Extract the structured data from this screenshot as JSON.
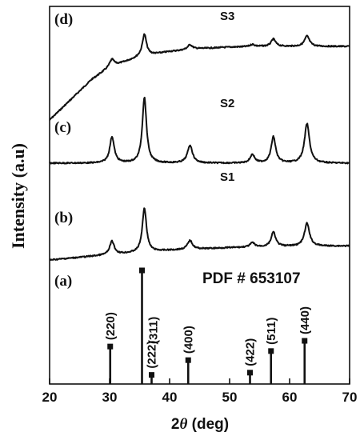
{
  "chart_data": {
    "type": "line",
    "title": "",
    "xlabel": "2θ (deg)",
    "xlabel_parts": {
      "prefix": "2",
      "theta": "θ",
      "suffix": " (deg)"
    },
    "ylabel": "Intensity (a.u)",
    "xlim": [
      20,
      70
    ],
    "xticks": [
      20,
      30,
      40,
      50,
      60,
      70
    ],
    "y_ticks_labeled": false,
    "grid": false,
    "series": [
      {
        "name": "S3",
        "panel": "(d)",
        "baseline": [
          [
            20,
            0.0
          ],
          [
            27,
            0.55
          ],
          [
            30,
            0.72
          ],
          [
            35,
            0.86
          ],
          [
            40,
            0.93
          ],
          [
            45,
            0.97
          ],
          [
            50,
            0.99
          ],
          [
            55,
            1.0
          ],
          [
            60,
            1.0
          ],
          [
            65,
            1.0
          ],
          [
            70,
            1.0
          ]
        ],
        "peaks": [
          {
            "x": 30.4,
            "height": 0.32,
            "width": 0.45
          },
          {
            "x": 35.8,
            "height": 1.0,
            "width": 0.42
          },
          {
            "x": 43.4,
            "height": 0.22,
            "width": 0.5
          },
          {
            "x": 53.8,
            "height": 0.1,
            "width": 0.45
          },
          {
            "x": 57.3,
            "height": 0.34,
            "width": 0.45
          },
          {
            "x": 62.9,
            "height": 0.48,
            "width": 0.5
          }
        ]
      },
      {
        "name": "S2",
        "panel": "(c)",
        "baseline": [
          [
            20,
            0.0
          ],
          [
            70,
            0.02
          ]
        ],
        "peaks": [
          {
            "x": 30.4,
            "height": 0.4,
            "width": 0.45
          },
          {
            "x": 35.8,
            "height": 1.0,
            "width": 0.42
          },
          {
            "x": 43.4,
            "height": 0.27,
            "width": 0.5
          },
          {
            "x": 53.8,
            "height": 0.13,
            "width": 0.45
          },
          {
            "x": 57.3,
            "height": 0.4,
            "width": 0.45
          },
          {
            "x": 62.9,
            "height": 0.6,
            "width": 0.5
          }
        ]
      },
      {
        "name": "S1",
        "panel": "(b)",
        "baseline": [
          [
            20,
            0.0
          ],
          [
            25,
            0.06
          ],
          [
            30,
            0.12
          ],
          [
            40,
            0.22
          ],
          [
            50,
            0.28
          ],
          [
            60,
            0.31
          ],
          [
            70,
            0.32
          ]
        ],
        "peaks": [
          {
            "x": 30.4,
            "height": 0.3,
            "width": 0.45
          },
          {
            "x": 35.8,
            "height": 1.0,
            "width": 0.42
          },
          {
            "x": 43.4,
            "height": 0.2,
            "width": 0.5
          },
          {
            "x": 53.8,
            "height": 0.1,
            "width": 0.45
          },
          {
            "x": 57.3,
            "height": 0.33,
            "width": 0.45
          },
          {
            "x": 62.9,
            "height": 0.52,
            "width": 0.5
          }
        ]
      }
    ],
    "reference": {
      "panel": "(a)",
      "label": "PDF # 653107",
      "lines": [
        {
          "x": 30.1,
          "intensity": 33,
          "hkl": "(220)"
        },
        {
          "x": 35.4,
          "intensity": 100,
          "hkl": "(311)"
        },
        {
          "x": 37.0,
          "intensity": 8,
          "hkl": "(222)"
        },
        {
          "x": 43.1,
          "intensity": 21,
          "hkl": "(400)"
        },
        {
          "x": 53.4,
          "intensity": 10,
          "hkl": "(422)"
        },
        {
          "x": 56.9,
          "intensity": 29,
          "hkl": "(511)"
        },
        {
          "x": 62.5,
          "intensity": 38,
          "hkl": "(440)"
        }
      ]
    }
  }
}
